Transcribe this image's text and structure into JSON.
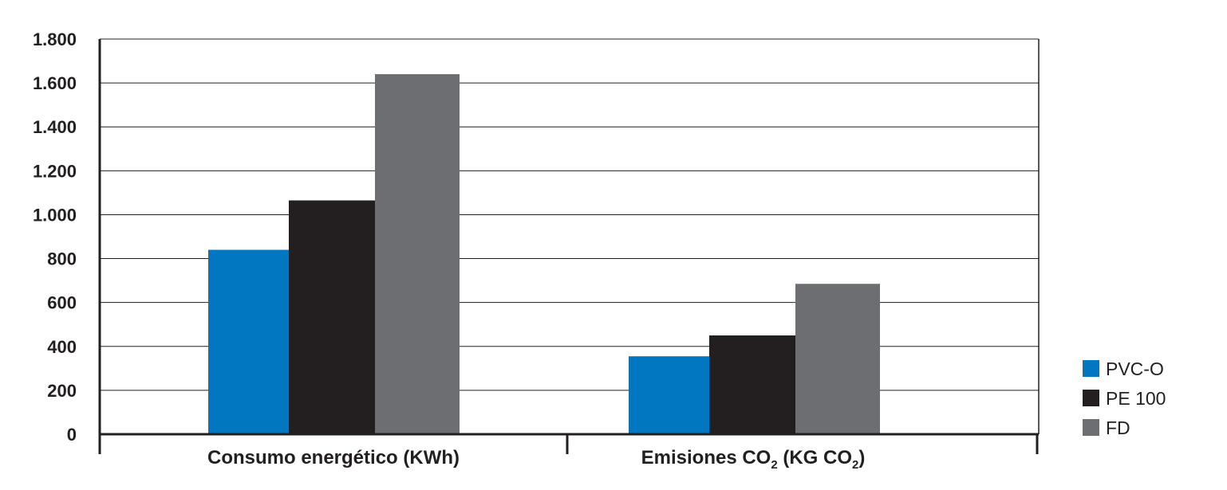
{
  "chart_data": {
    "type": "bar",
    "categories": [
      {
        "text": "Consumo energético (KWh)",
        "sub1": "",
        "mid": "",
        "sub2": "",
        "tail": ""
      },
      {
        "text": "Emisiones CO",
        "sub1": "2",
        "mid": " (KG CO",
        "sub2": "2",
        "tail": ")"
      }
    ],
    "series": [
      {
        "name": "PVC-O",
        "color": "#0077c0",
        "values": [
          840,
          355
        ]
      },
      {
        "name": "PE 100",
        "color": "#231f20",
        "values": [
          1065,
          450
        ]
      },
      {
        "name": "FD",
        "color": "#6d6e71",
        "values": [
          1640,
          685
        ]
      }
    ],
    "ylim": [
      0,
      1800
    ],
    "yticks": [
      {
        "value": 0,
        "label": "0"
      },
      {
        "value": 200,
        "label": "200"
      },
      {
        "value": 400,
        "label": "400"
      },
      {
        "value": 600,
        "label": "600"
      },
      {
        "value": 800,
        "label": "800"
      },
      {
        "value": 1000,
        "label": "1.000"
      },
      {
        "value": 1200,
        "label": "1.200"
      },
      {
        "value": 1400,
        "label": "1.400"
      },
      {
        "value": 1600,
        "label": "1.600"
      },
      {
        "value": 1800,
        "label": "1.800"
      }
    ],
    "grid": true,
    "legend": "bottom-right"
  }
}
